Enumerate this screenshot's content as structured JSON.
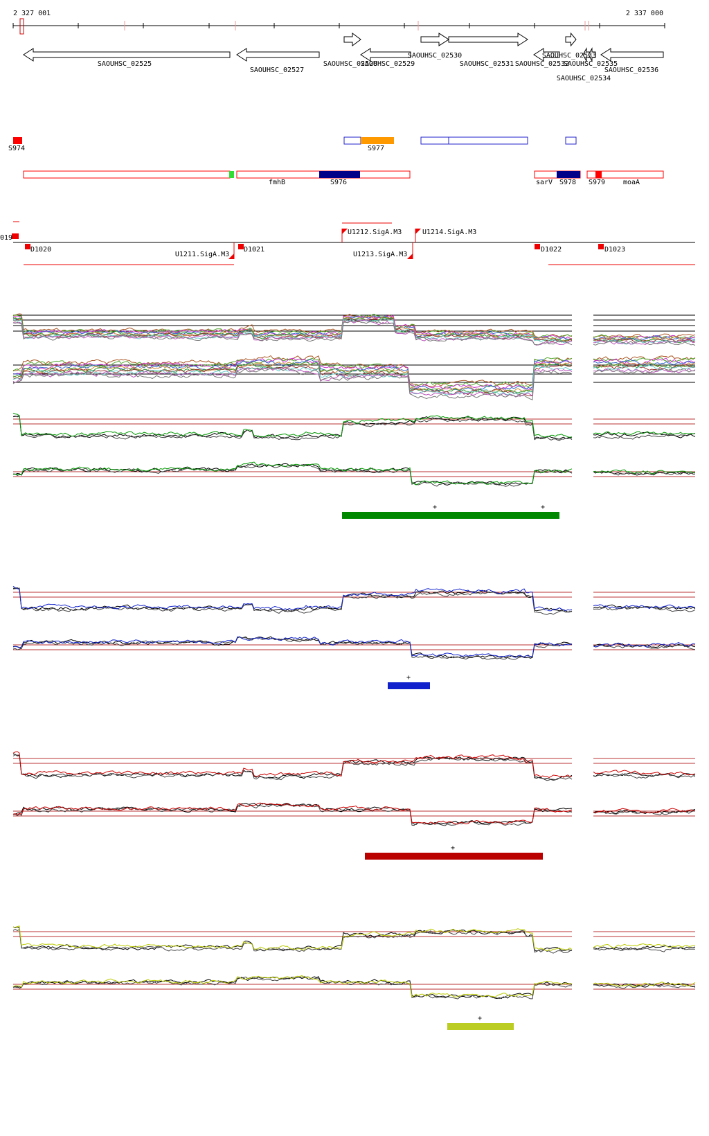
{
  "ruler": {
    "start": "2 327 001",
    "end": "2 337 000"
  },
  "genes": [
    "SAOUHSC_02525",
    "SAOUHSC_02527",
    "SAOUHSC_02528",
    "SAOUHSC_02529",
    "SAOUHSC_02530",
    "SAOUHSC_02531",
    "SAOUHSC_02532",
    "SAOUHSC_02533",
    "SAOUHSC_02535",
    "SAOUHSC_02534",
    "SAOUHSC_02536"
  ],
  "segments": [
    "S974",
    "S977",
    "fmhB",
    "S976",
    "sarV",
    "S978",
    "S979",
    "moaA"
  ],
  "promoters": [
    "019",
    "D1020",
    "U1211.SigA.M3",
    "D1021",
    "U1212.SigA.M3",
    "U1213.SigA.M3",
    "U1214.SigA.M3",
    "D1022",
    "D1023"
  ],
  "conditions": [
    {
      "marks": [
        "+",
        "+"
      ]
    },
    {
      "marks": [
        "+"
      ]
    },
    {
      "marks": [
        "+"
      ]
    },
    {
      "marks": [
        "+"
      ]
    }
  ]
}
